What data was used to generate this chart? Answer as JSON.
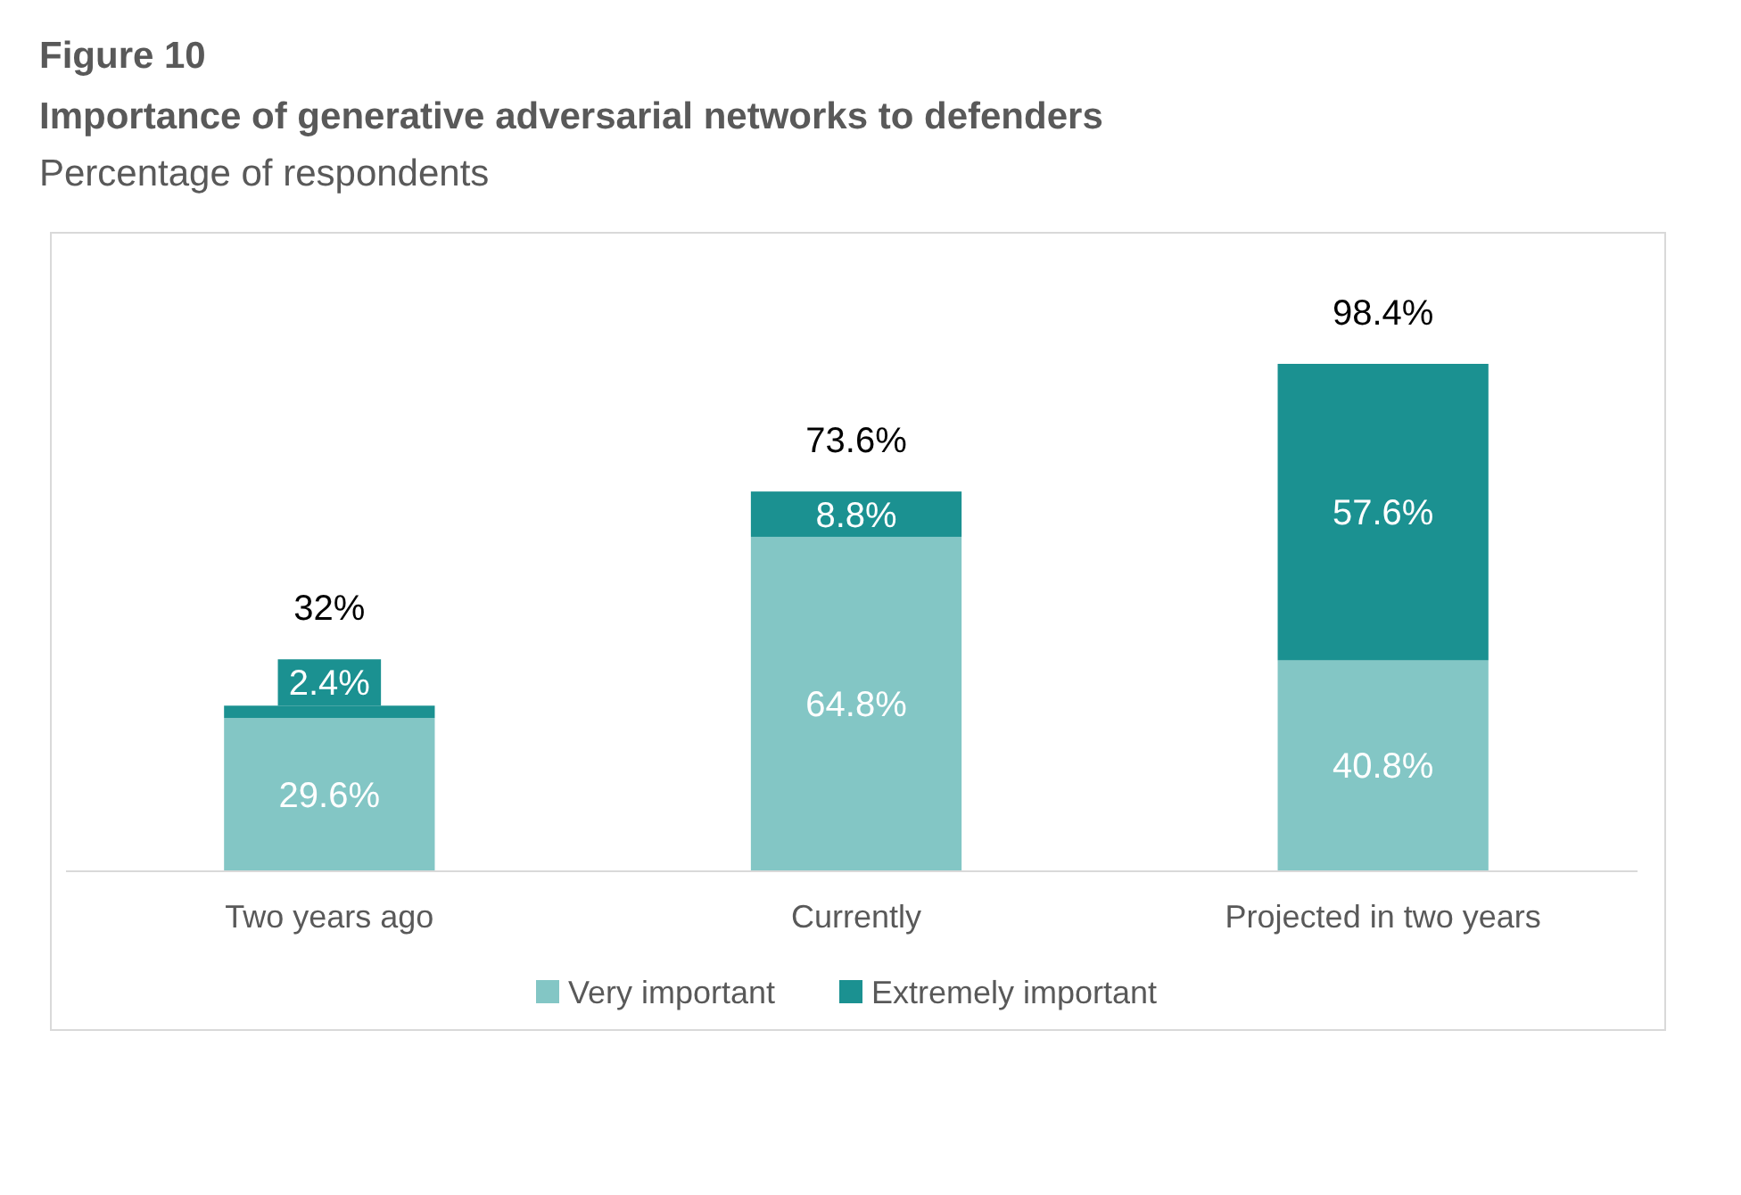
{
  "chart_data": {
    "type": "bar",
    "stacked": true,
    "title": "Importance of generative adversarial networks to defenders",
    "subtitle": "Percentage of respondents",
    "annotations": [
      "Figure 10"
    ],
    "categories": [
      "Two years ago",
      "Currently",
      "Projected in two years"
    ],
    "series": [
      {
        "name": "Very important",
        "color": "#83c6c5",
        "values": [
          29.6,
          64.8,
          40.8
        ],
        "value_labels": [
          "29.6%",
          "64.8%",
          "40.8%"
        ]
      },
      {
        "name": "Extremely important",
        "color": "#1b9191",
        "values": [
          2.4,
          8.8,
          57.6
        ],
        "value_labels": [
          "2.4%",
          "8.8%",
          "57.6%"
        ]
      }
    ],
    "totals": [
      "32%",
      "73.6%",
      "98.4%"
    ],
    "legend": "bottom"
  }
}
